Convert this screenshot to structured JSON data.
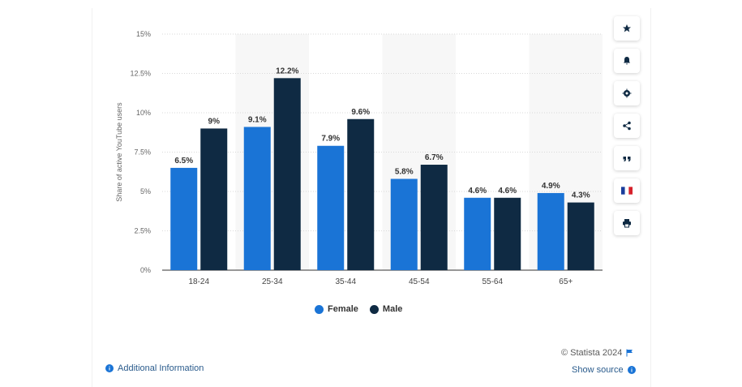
{
  "chart_data": {
    "type": "bar",
    "categories": [
      "18-24",
      "25-34",
      "35-44",
      "45-54",
      "55-64",
      "65+"
    ],
    "series": [
      {
        "name": "Female",
        "color": "#1a74d6",
        "values": [
          6.5,
          9.1,
          7.9,
          5.8,
          4.6,
          4.9
        ],
        "labels": [
          "6.5%",
          "9.1%",
          "7.9%",
          "5.8%",
          "4.6%",
          "4.9%"
        ]
      },
      {
        "name": "Male",
        "color": "#0f2a43",
        "values": [
          9,
          12.2,
          9.6,
          6.7,
          4.6,
          4.3
        ],
        "labels": [
          "9%",
          "12.2%",
          "9.6%",
          "6.7%",
          "4.6%",
          "4.3%"
        ]
      }
    ],
    "ylabel": "Share of active YouTube users",
    "ylim": [
      0,
      15
    ],
    "yticks": [
      "0%",
      "2.5%",
      "5%",
      "7.5%",
      "10%",
      "12.5%",
      "15%"
    ],
    "grid": true,
    "legend_position": "bottom-center"
  },
  "toolbar": {
    "icons": [
      "star-icon",
      "bell-icon",
      "gear-icon",
      "share-icon",
      "quote-icon",
      "french-flag-icon",
      "print-icon"
    ]
  },
  "footer": {
    "additional_info": "Additional Information",
    "copyright": "© Statista 2024",
    "show_source": "Show source"
  }
}
